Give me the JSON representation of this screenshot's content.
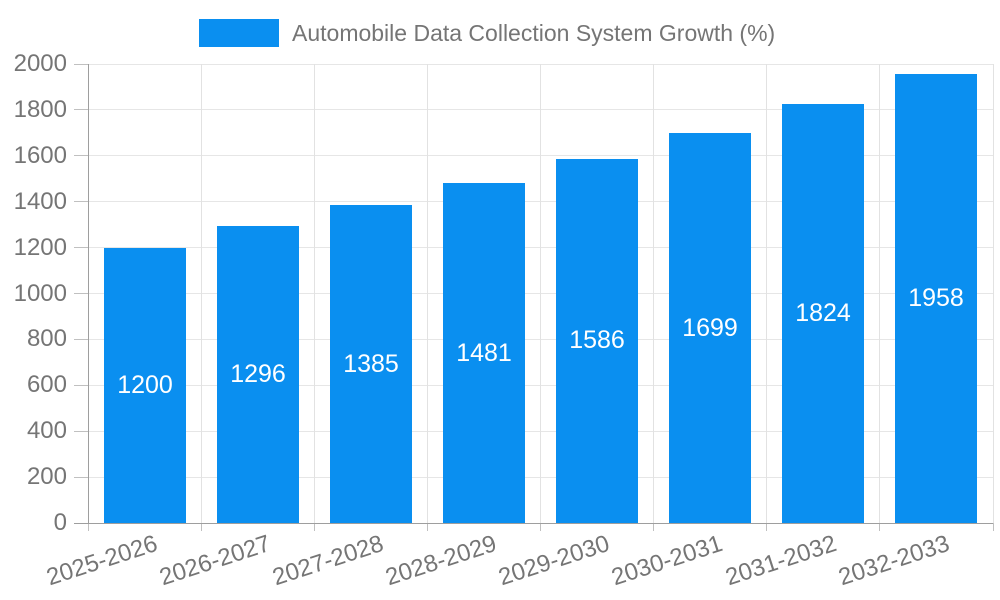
{
  "legend": {
    "items": [
      {
        "label": "Automobile Data Collection System Growth (%)",
        "swatch_color": "#0a8ff0"
      }
    ]
  },
  "chart_data": {
    "type": "bar",
    "title": "Automobile Data Collection System Growth (%)",
    "categories": [
      "2025-2026",
      "2026-2027",
      "2027-2028",
      "2028-2029",
      "2029-2030",
      "2030-2031",
      "2031-2032",
      "2032-2033"
    ],
    "values": [
      1200,
      1296,
      1385,
      1481,
      1586,
      1699,
      1824,
      1958
    ],
    "xlabel": "",
    "ylabel": "",
    "ylim": [
      0,
      2000
    ],
    "yticks": [
      0,
      200,
      400,
      600,
      800,
      1000,
      1200,
      1400,
      1600,
      1800,
      2000
    ],
    "grid": "on",
    "legend_position": "top-center",
    "bar_labels_visible": true,
    "colors": {
      "bar": "#0a8ff0",
      "bar_label": "#ffffff",
      "axis_line": "#9e9e9e",
      "tick": "#c0c0c0",
      "gridline": "#e6e6e6",
      "text": "#757575",
      "background": "#ffffff"
    }
  }
}
